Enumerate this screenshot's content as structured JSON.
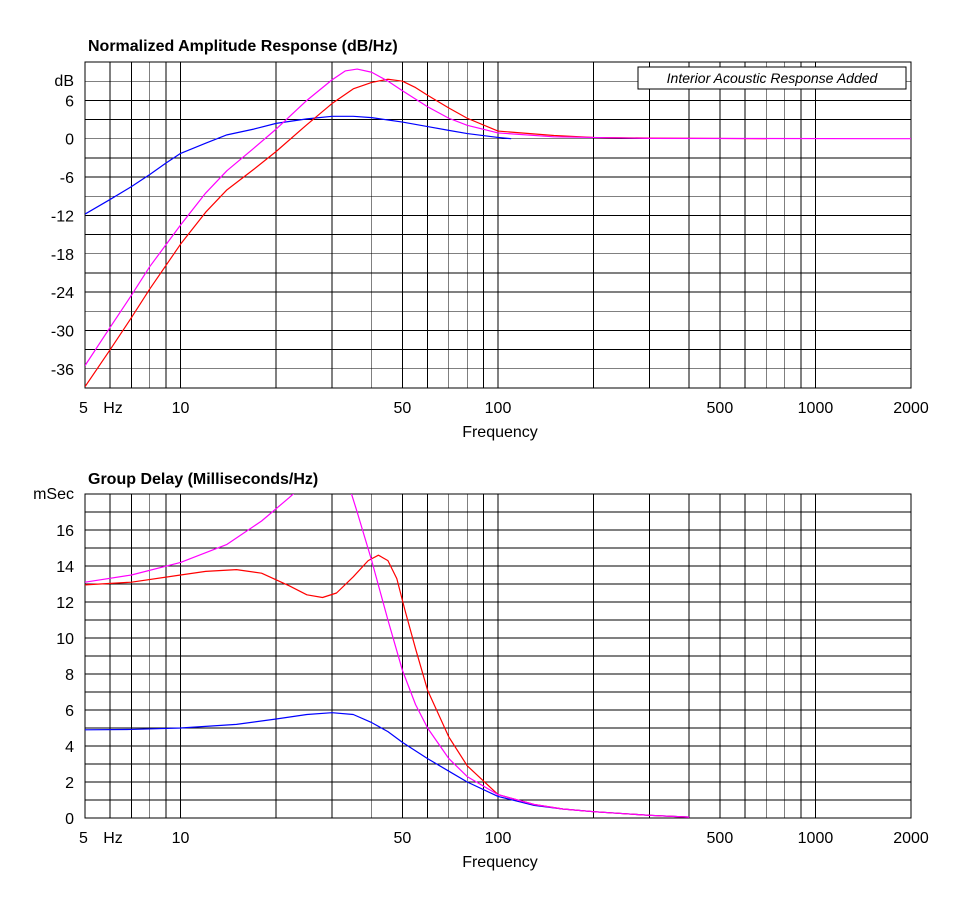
{
  "chart_data": [
    {
      "type": "line",
      "title": "Normalized Amplitude Response (dB/Hz)",
      "xlabel": "Frequency",
      "ylabel": "dB",
      "x_scale": "log",
      "xlim": [
        5,
        2000
      ],
      "ylim": [
        -39,
        12
      ],
      "x_ticks": [
        5,
        10,
        50,
        100,
        500,
        1000,
        2000
      ],
      "x_tick_labels": [
        "5",
        "10",
        "50",
        "100",
        "500",
        "1000",
        "2000"
      ],
      "x_unit_label": "Hz",
      "y_ticks": [
        6,
        0,
        -6,
        -12,
        -18,
        -24,
        -30,
        -36
      ],
      "y_tick_labels": [
        "6",
        "0",
        "-6",
        "-12",
        "-18",
        "-24",
        "-30",
        "-36"
      ],
      "y_top_label": "dB",
      "grid": true,
      "annotation": "Interior Acoustic Response Added",
      "colors": {
        "blue": "#0000ff",
        "red": "#ff0000",
        "magenta": "#ff00ff",
        "grid": "#000000"
      },
      "series": [
        {
          "color": "#0000ff",
          "points": [
            [
              5,
              -11.8
            ],
            [
              6,
              -9.5
            ],
            [
              7,
              -7.5
            ],
            [
              8,
              -5.6
            ],
            [
              9,
              -3.8
            ],
            [
              10,
              -2.3
            ],
            [
              12,
              -0.7
            ],
            [
              14,
              0.6
            ],
            [
              17,
              1.5
            ],
            [
              20,
              2.4
            ],
            [
              25,
              3.1
            ],
            [
              30,
              3.5
            ],
            [
              35,
              3.5
            ],
            [
              40,
              3.3
            ],
            [
              50,
              2.6
            ],
            [
              60,
              1.9
            ],
            [
              70,
              1.3
            ],
            [
              80,
              0.8
            ],
            [
              100,
              0.2
            ],
            [
              110,
              0.0
            ]
          ]
        },
        {
          "color": "#ff0000",
          "points": [
            [
              5,
              -38.8
            ],
            [
              6,
              -33
            ],
            [
              7,
              -28
            ],
            [
              8,
              -23.5
            ],
            [
              10,
              -16.5
            ],
            [
              12,
              -11.5
            ],
            [
              14,
              -8
            ],
            [
              17,
              -4.8
            ],
            [
              20,
              -2
            ],
            [
              25,
              2.2
            ],
            [
              30,
              5.5
            ],
            [
              35,
              7.8
            ],
            [
              40,
              8.8
            ],
            [
              45,
              9.3
            ],
            [
              50,
              9.0
            ],
            [
              55,
              8.0
            ],
            [
              60,
              6.8
            ],
            [
              70,
              4.8
            ],
            [
              80,
              3.2
            ],
            [
              100,
              1.2
            ],
            [
              150,
              0.5
            ],
            [
              200,
              0.2
            ],
            [
              300,
              0.1
            ],
            [
              700,
              0.0
            ]
          ]
        },
        {
          "color": "#ff00ff",
          "points": [
            [
              5,
              -35.5
            ],
            [
              6,
              -29.5
            ],
            [
              7,
              -24.5
            ],
            [
              8,
              -20
            ],
            [
              10,
              -13.5
            ],
            [
              12,
              -8.5
            ],
            [
              14,
              -5
            ],
            [
              17,
              -1.5
            ],
            [
              20,
              1.5
            ],
            [
              25,
              6
            ],
            [
              30,
              9.2
            ],
            [
              33,
              10.6
            ],
            [
              36,
              10.9
            ],
            [
              40,
              10.4
            ],
            [
              45,
              9
            ],
            [
              50,
              7.5
            ],
            [
              60,
              5
            ],
            [
              70,
              3.2
            ],
            [
              80,
              2.1
            ],
            [
              100,
              0.9
            ],
            [
              150,
              0.3
            ],
            [
              300,
              0.05
            ],
            [
              2000,
              0.0
            ]
          ]
        }
      ]
    },
    {
      "type": "line",
      "title": "Group Delay (Milliseconds/Hz)",
      "xlabel": "Frequency",
      "ylabel": "mSec",
      "x_scale": "log",
      "xlim": [
        5,
        2000
      ],
      "ylim": [
        0,
        18
      ],
      "x_ticks": [
        5,
        10,
        50,
        100,
        500,
        1000,
        2000
      ],
      "x_tick_labels": [
        "5",
        "10",
        "50",
        "100",
        "500",
        "1000",
        "2000"
      ],
      "x_unit_label": "Hz",
      "y_ticks": [
        16,
        14,
        12,
        10,
        8,
        6,
        4,
        2,
        0
      ],
      "y_tick_labels": [
        "16",
        "14",
        "12",
        "10",
        "8",
        "6",
        "4",
        "2",
        "0"
      ],
      "y_top_label": "mSec",
      "grid": true,
      "colors": {
        "blue": "#0000ff",
        "red": "#ff0000",
        "magenta": "#ff00ff",
        "grid": "#000000"
      },
      "series": [
        {
          "color": "#0000ff",
          "points": [
            [
              5,
              4.9
            ],
            [
              7,
              4.92
            ],
            [
              10,
              5.0
            ],
            [
              15,
              5.2
            ],
            [
              20,
              5.5
            ],
            [
              25,
              5.75
            ],
            [
              30,
              5.85
            ],
            [
              35,
              5.75
            ],
            [
              40,
              5.3
            ],
            [
              45,
              4.8
            ],
            [
              50,
              4.2
            ],
            [
              60,
              3.3
            ],
            [
              70,
              2.6
            ],
            [
              80,
              2.0
            ],
            [
              100,
              1.2
            ],
            [
              130,
              0.7
            ],
            [
              160,
              0.5
            ],
            [
              200,
              0.35
            ],
            [
              300,
              0.15
            ],
            [
              400,
              0.05
            ]
          ]
        },
        {
          "color": "#ff0000",
          "points": [
            [
              5,
              12.95
            ],
            [
              7,
              13.1
            ],
            [
              10,
              13.5
            ],
            [
              12,
              13.7
            ],
            [
              15,
              13.8
            ],
            [
              18,
              13.6
            ],
            [
              22,
              12.9
            ],
            [
              25,
              12.4
            ],
            [
              28,
              12.25
            ],
            [
              31,
              12.5
            ],
            [
              35,
              13.4
            ],
            [
              39,
              14.3
            ],
            [
              42,
              14.6
            ],
            [
              45,
              14.3
            ],
            [
              48,
              13.3
            ],
            [
              51,
              11.5
            ],
            [
              55,
              9.4
            ],
            [
              60,
              7.1
            ],
            [
              70,
              4.5
            ],
            [
              80,
              2.9
            ],
            [
              100,
              1.3
            ],
            [
              130,
              0.75
            ],
            [
              160,
              0.5
            ],
            [
              200,
              0.35
            ],
            [
              300,
              0.15
            ],
            [
              400,
              0.05
            ]
          ]
        },
        {
          "color": "#ff00ff",
          "points": [
            [
              5,
              13.1
            ],
            [
              7,
              13.5
            ],
            [
              10,
              14.2
            ],
            [
              14,
              15.2
            ],
            [
              18,
              16.5
            ],
            [
              22,
              17.8
            ],
            [
              24,
              18.4
            ]
          ]
        },
        {
          "color": "#ff00ff",
          "points": [
            [
              34,
              18.4
            ],
            [
              36,
              17.0
            ],
            [
              40,
              14.3
            ],
            [
              45,
              11.0
            ],
            [
              50,
              8.2
            ],
            [
              55,
              6.3
            ],
            [
              60,
              5.0
            ],
            [
              70,
              3.3
            ],
            [
              80,
              2.3
            ],
            [
              100,
              1.3
            ],
            [
              130,
              0.75
            ],
            [
              160,
              0.5
            ],
            [
              200,
              0.35
            ],
            [
              300,
              0.15
            ],
            [
              400,
              0.05
            ]
          ]
        }
      ]
    }
  ]
}
